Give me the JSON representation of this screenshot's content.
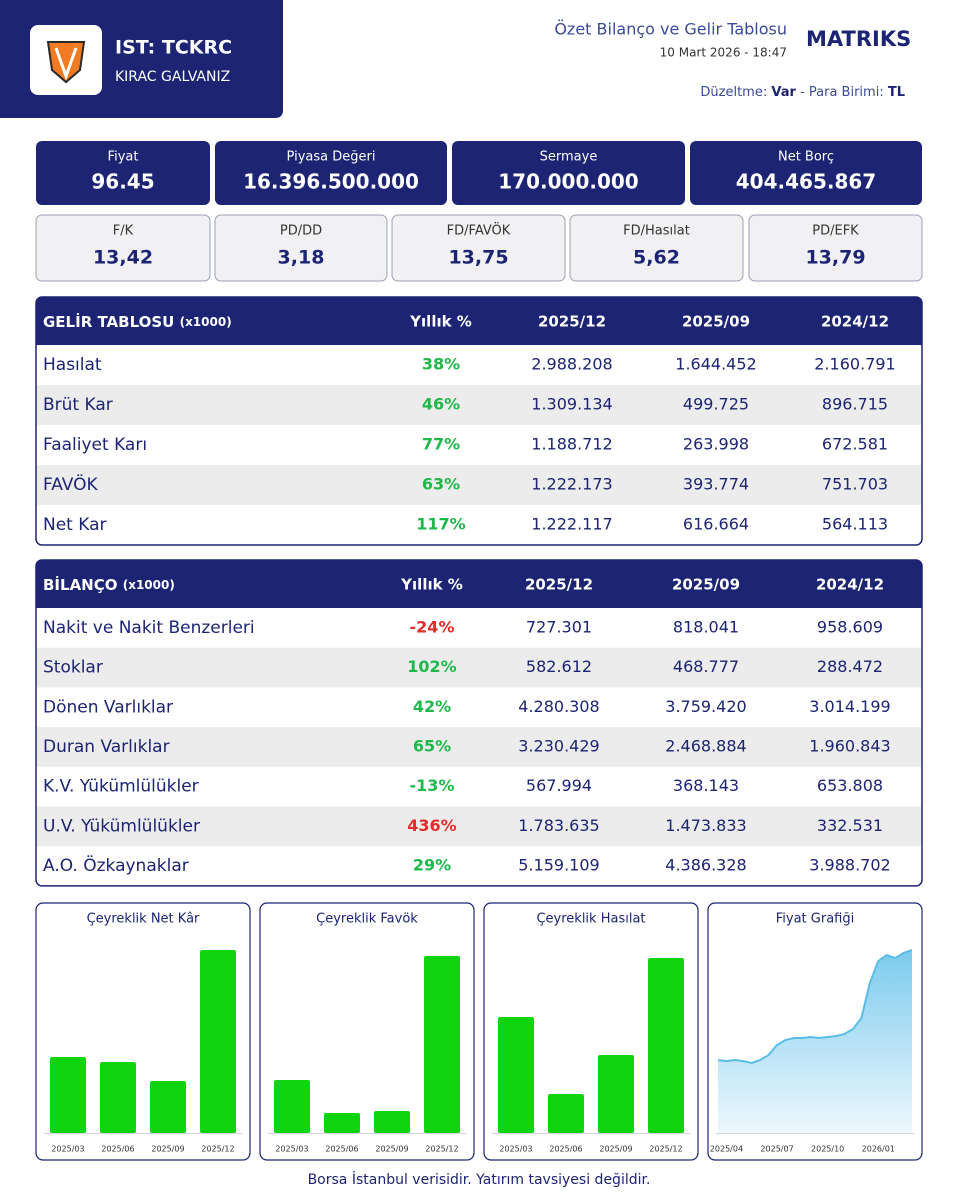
{
  "header": {
    "ticker": "IST: TCKRC",
    "company": "KIRAC GALVANIZ",
    "title": "Özet Bilanço ve Gelir Tablosu",
    "date": "10 Mart 2026 - 18:47",
    "brand": "MATRIKS",
    "adjustment_label": "Düzeltme:",
    "adjustment": "Var",
    "currency_label": "- Para Birimi:",
    "currency": "TL"
  },
  "metrics": {
    "primary": [
      {
        "label": "Fiyat",
        "value": "96.45"
      },
      {
        "label": "Piyasa Değeri",
        "value": "16.396.500.000"
      },
      {
        "label": "Sermaye",
        "value": "170.000.000"
      },
      {
        "label": "Net Borç",
        "value": "404.465.867"
      }
    ],
    "ratios": [
      {
        "label": "F/K",
        "value": "13,42"
      },
      {
        "label": "PD/DD",
        "value": "3,18"
      },
      {
        "label": "FD/FAVÖK",
        "value": "13,75"
      },
      {
        "label": "FD/Hasılat",
        "value": "5,62"
      },
      {
        "label": "PD/EFK",
        "value": "13,79"
      }
    ]
  },
  "income": {
    "title": "GELİR TABLOSU",
    "unit": "(x1000)",
    "columns": [
      "Yıllık %",
      "2025/12",
      "2025/09",
      "2024/12"
    ],
    "rows": [
      {
        "label": "Hasılat",
        "yoy": "38%",
        "yoy_color": "#1fb84a",
        "values": [
          "2.988.208",
          "1.644.452",
          "2.160.791"
        ]
      },
      {
        "label": "Brüt Kar",
        "yoy": "46%",
        "yoy_color": "#1fb84a",
        "values": [
          "1.309.134",
          "499.725",
          "896.715"
        ]
      },
      {
        "label": "Faaliyet Karı",
        "yoy": "77%",
        "yoy_color": "#1fb84a",
        "values": [
          "1.188.712",
          "263.998",
          "672.581"
        ]
      },
      {
        "label": "FAVÖK",
        "yoy": "63%",
        "yoy_color": "#1fb84a",
        "values": [
          "1.222.173",
          "393.774",
          "751.703"
        ]
      },
      {
        "label": "Net Kar",
        "yoy": "117%",
        "yoy_color": "#1fb84a",
        "values": [
          "1.222.117",
          "616.664",
          "564.113"
        ]
      }
    ]
  },
  "balance": {
    "title": "BİLANÇO",
    "unit": "(x1000)",
    "columns": [
      "Yıllık %",
      "2025/12",
      "2025/09",
      "2024/12"
    ],
    "rows": [
      {
        "label": "Nakit ve Nakit Benzerleri",
        "yoy": "-24%",
        "yoy_color": "#e52b2b",
        "values": [
          "727.301",
          "818.041",
          "958.609"
        ]
      },
      {
        "label": "Stoklar",
        "yoy": "102%",
        "yoy_color": "#1fb84a",
        "values": [
          "582.612",
          "468.777",
          "288.472"
        ]
      },
      {
        "label": "Dönen Varlıklar",
        "yoy": "42%",
        "yoy_color": "#1fb84a",
        "values": [
          "4.280.308",
          "3.759.420",
          "3.014.199"
        ]
      },
      {
        "label": "Duran Varlıklar",
        "yoy": "65%",
        "yoy_color": "#1fb84a",
        "values": [
          "3.230.429",
          "2.468.884",
          "1.960.843"
        ]
      },
      {
        "label": "K.V. Yükümlülükler",
        "yoy": "-13%",
        "yoy_color": "#1fb84a",
        "values": [
          "567.994",
          "368.143",
          "653.808"
        ]
      },
      {
        "label": "U.V. Yükümlülükler",
        "yoy": "436%",
        "yoy_color": "#e52b2b",
        "values": [
          "1.783.635",
          "1.473.833",
          "332.531"
        ]
      },
      {
        "label": "A.O. Özkaynaklar",
        "yoy": "29%",
        "yoy_color": "#1fb84a",
        "values": [
          "5.159.109",
          "4.386.328",
          "3.988.702"
        ]
      }
    ]
  },
  "chart_data": [
    {
      "type": "bar",
      "title": "Çeyreklik Net Kâr",
      "categories": [
        "2025/03",
        "2025/06",
        "2025/09",
        "2025/12"
      ],
      "values": [
        76,
        71,
        52,
        183
      ],
      "color": "#11d411"
    },
    {
      "type": "bar",
      "title": "Çeyreklik Favök",
      "categories": [
        "2025/03",
        "2025/06",
        "2025/09",
        "2025/12"
      ],
      "values": [
        53,
        20,
        22,
        177
      ],
      "color": "#11d411"
    },
    {
      "type": "bar",
      "title": "Çeyreklik Hasılat",
      "categories": [
        "2025/03",
        "2025/06",
        "2025/09",
        "2025/12"
      ],
      "values": [
        116,
        39,
        78,
        175
      ],
      "color": "#11d411"
    },
    {
      "type": "line",
      "title": "Fiyat Grafiği",
      "categories": [
        null,
        "2025/04",
        null,
        null,
        null,
        null,
        null,
        "2025/07",
        null,
        null,
        null,
        null,
        null,
        "2025/10",
        null,
        null,
        null,
        null,
        null,
        "2026/01",
        null,
        null,
        null,
        null
      ],
      "values": [
        38.5,
        37.9,
        38.5,
        37.9,
        36.9,
        38.5,
        41.1,
        46.4,
        49,
        50.1,
        50.1,
        50.6,
        50.1,
        50.6,
        51.1,
        52.2,
        54.8,
        60.6,
        79,
        90.6,
        93.8,
        92.2,
        94.9,
        96.45
      ],
      "color": "#5bbde6"
    }
  ],
  "footer": "Borsa İstanbul verisidir. Yatırım tavsiyesi değildir."
}
